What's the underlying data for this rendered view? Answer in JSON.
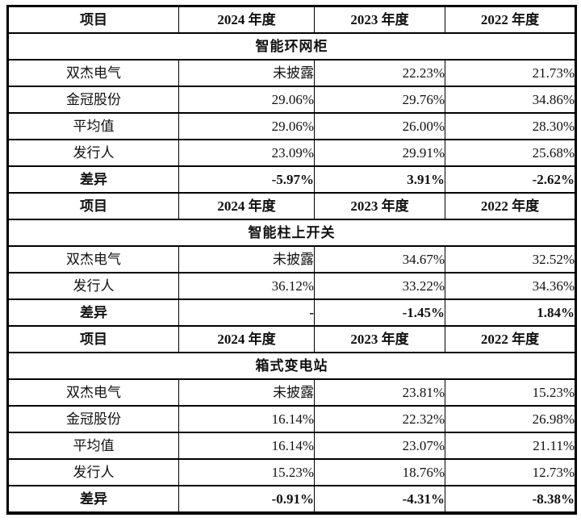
{
  "table": {
    "columns": [
      "项目",
      "2024 年度",
      "2023 年度",
      "2022 年度"
    ],
    "sections": [
      {
        "title": "智能环网柜",
        "rows": [
          {
            "label": "双杰电气",
            "values": [
              "未披露",
              "22.23%",
              "21.73%"
            ],
            "bold": false
          },
          {
            "label": "金冠股份",
            "values": [
              "29.06%",
              "29.76%",
              "34.86%"
            ],
            "bold": false
          },
          {
            "label": "平均值",
            "values": [
              "29.06%",
              "26.00%",
              "28.30%"
            ],
            "bold": false
          },
          {
            "label": "发行人",
            "values": [
              "23.09%",
              "29.91%",
              "25.68%"
            ],
            "bold": false
          },
          {
            "label": "差异",
            "values": [
              "-5.97%",
              "3.91%",
              "-2.62%"
            ],
            "bold": true
          }
        ]
      },
      {
        "title": "智能柱上开关",
        "rows": [
          {
            "label": "双杰电气",
            "values": [
              "未披露",
              "34.67%",
              "32.52%"
            ],
            "bold": false
          },
          {
            "label": "发行人",
            "values": [
              "36.12%",
              "33.22%",
              "34.36%"
            ],
            "bold": false
          },
          {
            "label": "差异",
            "values": [
              "-",
              "-1.45%",
              "1.84%"
            ],
            "bold": true
          }
        ]
      },
      {
        "title": "箱式变电站",
        "rows": [
          {
            "label": "双杰电气",
            "values": [
              "未披露",
              "23.81%",
              "15.23%"
            ],
            "bold": false
          },
          {
            "label": "金冠股份",
            "values": [
              "16.14%",
              "22.32%",
              "26.98%"
            ],
            "bold": false
          },
          {
            "label": "平均值",
            "values": [
              "16.14%",
              "23.07%",
              "21.11%"
            ],
            "bold": false
          },
          {
            "label": "发行人",
            "values": [
              "15.23%",
              "18.76%",
              "12.73%"
            ],
            "bold": false
          },
          {
            "label": "差异",
            "values": [
              "-0.91%",
              "-4.31%",
              "-8.38%"
            ],
            "bold": true
          }
        ]
      }
    ],
    "colors": {
      "header_bg": "#c5c5c5",
      "row_bg": "#ffffff",
      "border": "#000000",
      "text": "#111111"
    }
  }
}
